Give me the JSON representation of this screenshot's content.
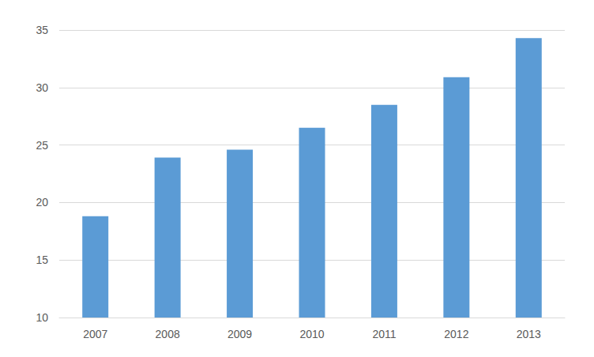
{
  "chart_data": {
    "type": "bar",
    "categories": [
      "2007",
      "2008",
      "2009",
      "2010",
      "2011",
      "2012",
      "2013"
    ],
    "values": [
      18.8,
      23.9,
      24.6,
      26.5,
      28.5,
      30.9,
      34.3
    ],
    "color": "#5b9bd5",
    "ylim": [
      10,
      35
    ],
    "yticks": [
      10,
      15,
      20,
      25,
      30,
      35
    ],
    "grid": true
  }
}
